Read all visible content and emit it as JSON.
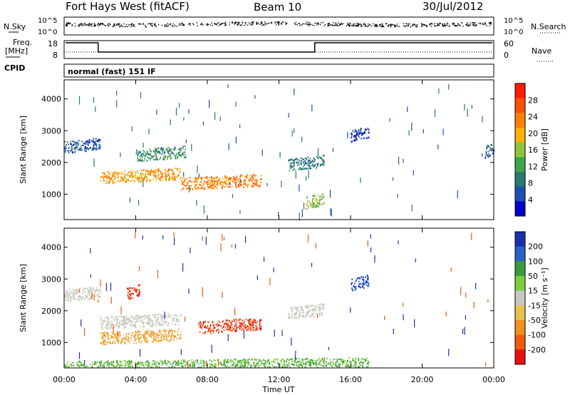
{
  "header": {
    "station": "Fort Hays West (fitACF)",
    "beam": "Beam 10",
    "date": "30/Jul/2012"
  },
  "noise_panel": {
    "left_label": "N.Sky",
    "right_label": "N.Search",
    "top_tick": "10^5",
    "bottom_tick": "10^0"
  },
  "freq_panel": {
    "left_label_1": "Freq.",
    "left_label_2": "[MHz]",
    "right_label": "Nave",
    "left_top": "18",
    "left_bottom": "8",
    "right_top": "60",
    "right_bottom": "0"
  },
  "cpid": {
    "label": "CPID",
    "value": "normal (fast) 151 IF"
  },
  "colors": {
    "power_scale": [
      "#0000cc",
      "#1e4fb0",
      "#2a7a6e",
      "#3fa54a",
      "#8fc43a",
      "#ffb000",
      "#ff8000",
      "#ff5000",
      "#ff1a00"
    ],
    "velocity_scale": [
      "#1a2fb0",
      "#2a60c8",
      "#3c9a3c",
      "#7ccf3c",
      "#c8c8c0",
      "#e8c050",
      "#f09020",
      "#f05a10",
      "#e81010"
    ]
  },
  "power_colorbar": {
    "label": "Power [dB]",
    "ticks": [
      "28",
      "24",
      "20",
      "16",
      "12",
      "8",
      "4"
    ]
  },
  "velocity_colorbar": {
    "label": "Velocity [m s⁻¹]",
    "ticks": [
      "200",
      "100",
      "50",
      "15",
      "-15",
      "-50",
      "-100",
      "-200"
    ]
  },
  "chart_data": [
    {
      "type": "heatmap",
      "title": "",
      "xlabel": "",
      "ylabel": "Slant Range [km]",
      "xlim": [
        0,
        24
      ],
      "ylim": [
        200,
        4600
      ],
      "yticks": [
        "1000",
        "2000",
        "3000",
        "4000"
      ],
      "colorbar": "Power [dB]",
      "regions": [
        {
          "t_start": 0.0,
          "t_end": 2.0,
          "range_center": 2550,
          "power_db": 6
        },
        {
          "t_start": 2.0,
          "t_end": 6.5,
          "range_center": 1600,
          "power_db": 20
        },
        {
          "t_start": 4.0,
          "t_end": 6.8,
          "range_center": 2300,
          "power_db": 10
        },
        {
          "t_start": 6.5,
          "t_end": 11.0,
          "range_center": 1400,
          "power_db": 22
        },
        {
          "t_start": 12.5,
          "t_end": 14.5,
          "range_center": 2000,
          "power_db": 8
        },
        {
          "t_start": 13.5,
          "t_end": 14.5,
          "range_center": 800,
          "power_db": 14
        },
        {
          "t_start": 16.0,
          "t_end": 17.0,
          "range_center": 2900,
          "power_db": 4
        },
        {
          "t_start": 23.5,
          "t_end": 24.0,
          "range_center": 2400,
          "power_db": 6
        }
      ]
    },
    {
      "type": "heatmap",
      "title": "",
      "xlabel": "Time UT",
      "ylabel": "Slant Range [km]",
      "xlim": [
        0,
        24
      ],
      "ylim": [
        200,
        4600
      ],
      "xticks": [
        "00:00",
        "04:00",
        "08:00",
        "12:00",
        "16:00",
        "20:00",
        "00:00"
      ],
      "yticks": [
        "1000",
        "2000",
        "3000",
        "4000"
      ],
      "colorbar": "Velocity [m s⁻¹]",
      "regions": [
        {
          "t_start": 0.0,
          "t_end": 2.0,
          "range_center": 2550,
          "velocity": 0
        },
        {
          "t_start": 2.0,
          "t_end": 6.5,
          "range_center": 1700,
          "velocity": 0
        },
        {
          "t_start": 3.5,
          "t_end": 4.2,
          "range_center": 2600,
          "velocity": -200
        },
        {
          "t_start": 7.5,
          "t_end": 11.0,
          "range_center": 1550,
          "velocity": -200
        },
        {
          "t_start": 2.0,
          "t_end": 6.5,
          "range_center": 1200,
          "velocity": -50
        },
        {
          "t_start": 12.5,
          "t_end": 14.5,
          "range_center": 2000,
          "velocity": 0
        },
        {
          "t_start": 16.0,
          "t_end": 17.0,
          "range_center": 2900,
          "velocity": 200
        },
        {
          "t_start": 0.0,
          "t_end": 17.0,
          "range_center": 300,
          "velocity": 50
        }
      ]
    }
  ]
}
